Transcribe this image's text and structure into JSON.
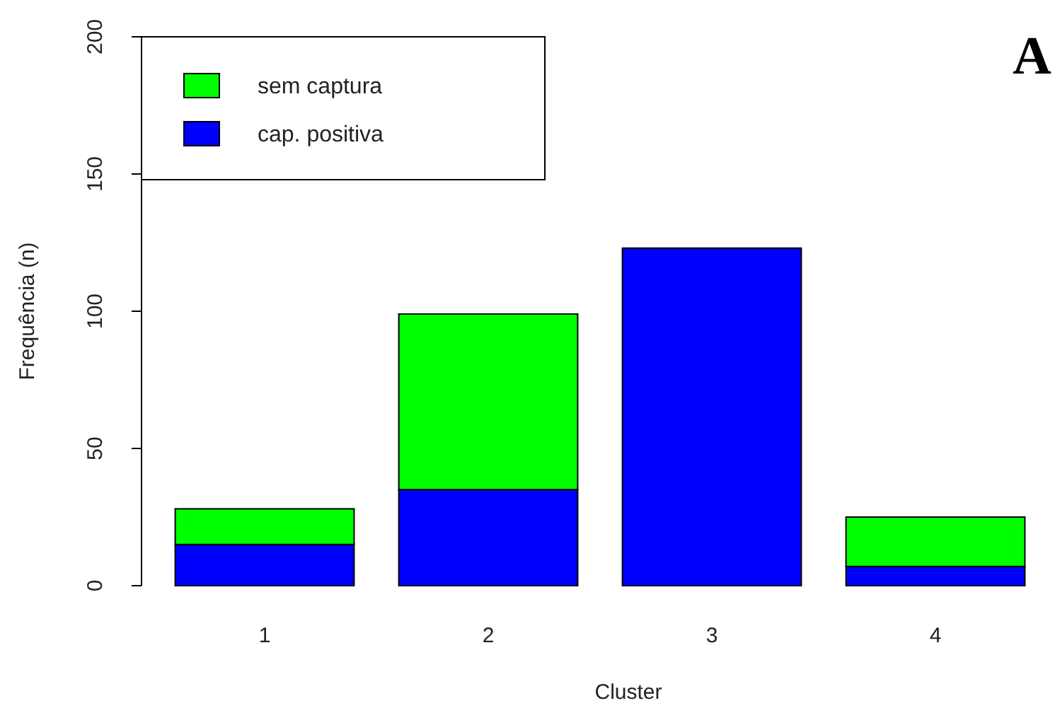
{
  "chart_data": {
    "type": "bar",
    "stacked": true,
    "xlabel": "Cluster",
    "ylabel": "Frequência (n)",
    "categories": [
      "1",
      "2",
      "3",
      "4"
    ],
    "series": [
      {
        "name": "cap. positiva",
        "color": "#0000ff",
        "values": [
          15,
          35,
          123,
          7
        ]
      },
      {
        "name": "sem captura",
        "color": "#00ff00",
        "values": [
          13,
          64,
          0,
          18
        ]
      }
    ],
    "ylim": [
      0,
      200
    ],
    "yticks": [
      0,
      50,
      100,
      150,
      200
    ],
    "legend": "top left",
    "annotations": [
      "A"
    ]
  }
}
